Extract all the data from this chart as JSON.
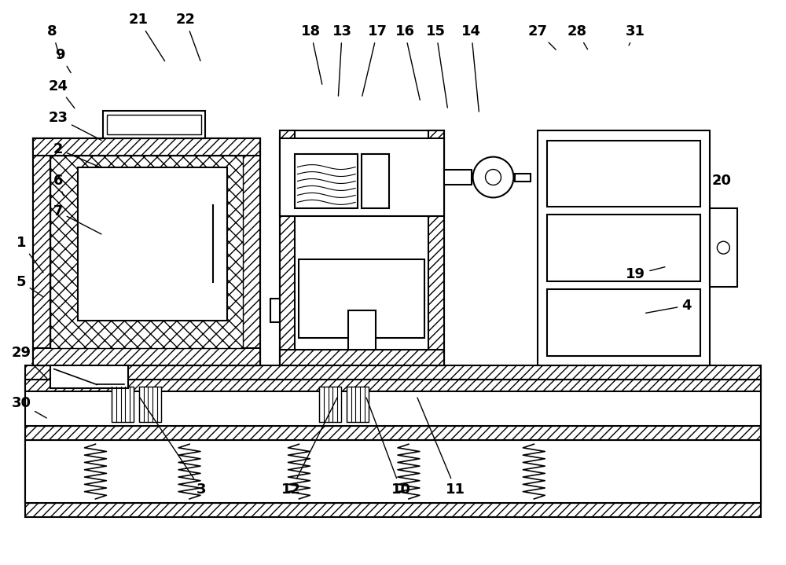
{
  "bg_color": "#ffffff",
  "figsize": [
    10.0,
    7.19
  ],
  "dpi": 100,
  "lw_main": 1.5,
  "lw_thin": 1.0,
  "font_size": 13
}
